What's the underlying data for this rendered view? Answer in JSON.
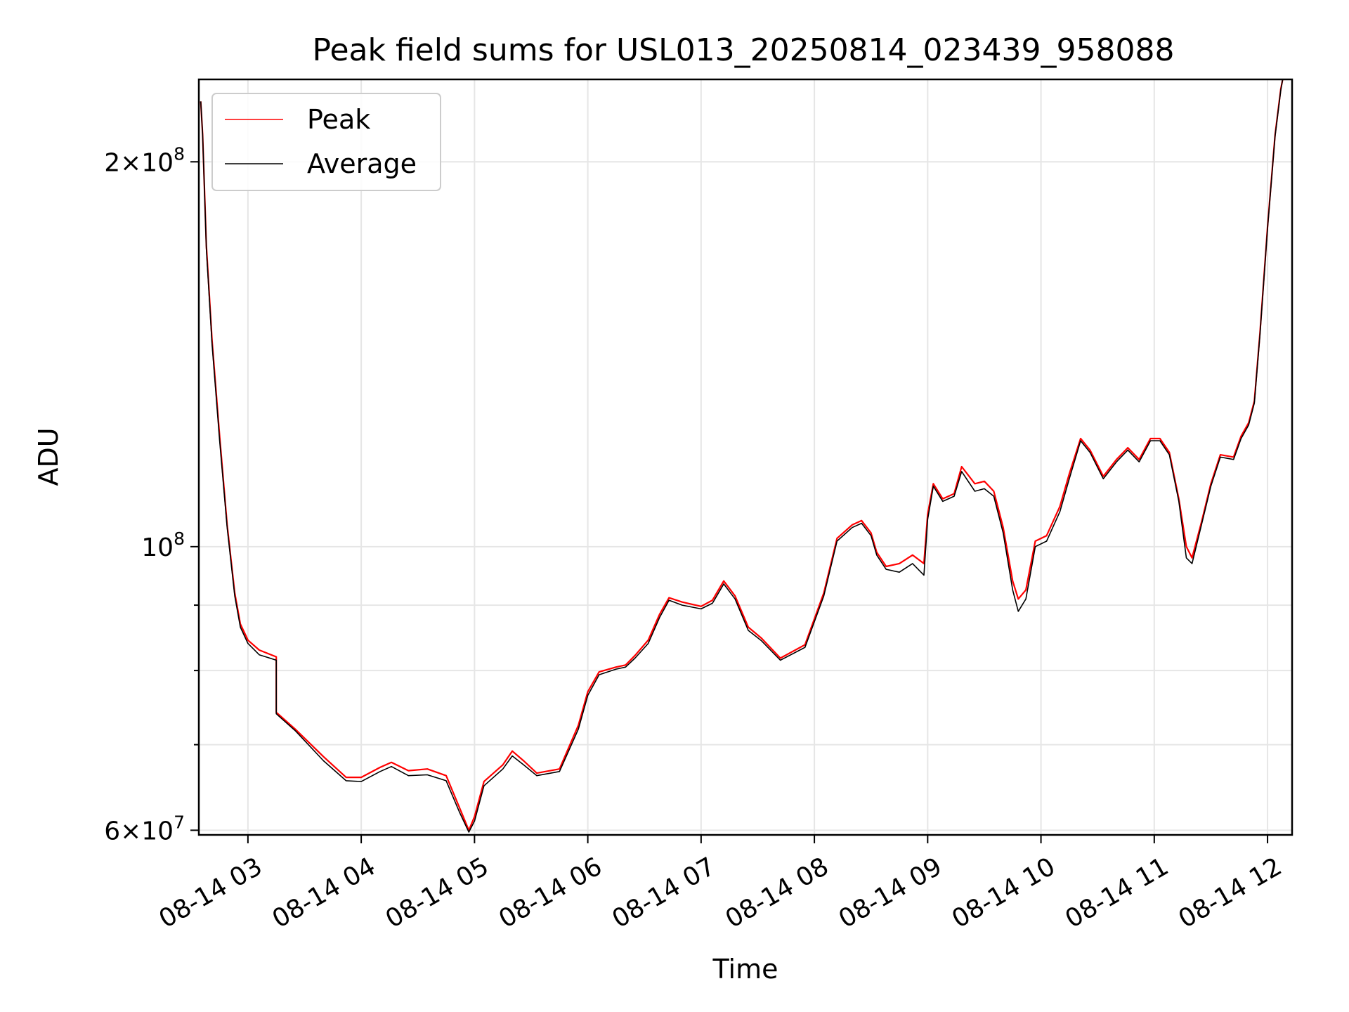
{
  "chart_data": {
    "type": "line",
    "title": "Peak field sums for USL013_20250814_023439_958088",
    "xlabel": "Time",
    "ylabel": "ADU",
    "y_scale": "log",
    "ylim": [
      59500000,
      232000000
    ],
    "xlim": [
      "2025-08-14 02:34",
      "2025-08-14 12:13"
    ],
    "grid": true,
    "legend_position": "upper-left",
    "x_ticks": [
      {
        "t": "2025-08-14 03:00",
        "label": "08-14 03"
      },
      {
        "t": "2025-08-14 04:00",
        "label": "08-14 04"
      },
      {
        "t": "2025-08-14 05:00",
        "label": "08-14 05"
      },
      {
        "t": "2025-08-14 06:00",
        "label": "08-14 06"
      },
      {
        "t": "2025-08-14 07:00",
        "label": "08-14 07"
      },
      {
        "t": "2025-08-14 08:00",
        "label": "08-14 08"
      },
      {
        "t": "2025-08-14 09:00",
        "label": "08-14 09"
      },
      {
        "t": "2025-08-14 10:00",
        "label": "08-14 10"
      },
      {
        "t": "2025-08-14 11:00",
        "label": "08-14 11"
      },
      {
        "t": "2025-08-14 12:00",
        "label": "08-14 12"
      }
    ],
    "y_ticks_major": [
      {
        "value": 200000000,
        "mant": "2",
        "exp": "8"
      },
      {
        "value": 100000000,
        "mant": "",
        "exp": "8"
      },
      {
        "value": 60000000,
        "mant": "6",
        "exp": "7"
      }
    ],
    "y_ticks_minor": [
      70000000,
      80000000,
      90000000
    ],
    "series": [
      {
        "name": "Peak",
        "color": "#ff0000",
        "points": [
          [
            "2025-08-14 02:35",
            223000000
          ],
          [
            "2025-08-14 02:36",
            210000000
          ],
          [
            "2025-08-14 02:38",
            172000000
          ],
          [
            "2025-08-14 02:41",
            145000000
          ],
          [
            "2025-08-14 02:45",
            122000000
          ],
          [
            "2025-08-14 02:49",
            104000000
          ],
          [
            "2025-08-14 02:53",
            92000000
          ],
          [
            "2025-08-14 02:56",
            87000000
          ],
          [
            "2025-08-14 03:00",
            84500000
          ],
          [
            "2025-08-14 03:06",
            83000000
          ],
          [
            "2025-08-14 03:15",
            82000000
          ],
          [
            "2025-08-14 03:15",
            74200000
          ],
          [
            "2025-08-14 03:25",
            72000000
          ],
          [
            "2025-08-14 03:40",
            68500000
          ],
          [
            "2025-08-14 03:52",
            66000000
          ],
          [
            "2025-08-14 04:00",
            66000000
          ],
          [
            "2025-08-14 04:10",
            67200000
          ],
          [
            "2025-08-14 04:16",
            67800000
          ],
          [
            "2025-08-14 04:25",
            66800000
          ],
          [
            "2025-08-14 04:35",
            67000000
          ],
          [
            "2025-08-14 04:45",
            66200000
          ],
          [
            "2025-08-14 04:52",
            62500000
          ],
          [
            "2025-08-14 04:57",
            60000000
          ],
          [
            "2025-08-14 05:00",
            61500000
          ],
          [
            "2025-08-14 05:05",
            65500000
          ],
          [
            "2025-08-14 05:15",
            67500000
          ],
          [
            "2025-08-14 05:20",
            69200000
          ],
          [
            "2025-08-14 05:26",
            68000000
          ],
          [
            "2025-08-14 05:33",
            66500000
          ],
          [
            "2025-08-14 05:45",
            67000000
          ],
          [
            "2025-08-14 05:55",
            72500000
          ],
          [
            "2025-08-14 06:00",
            77000000
          ],
          [
            "2025-08-14 06:06",
            79800000
          ],
          [
            "2025-08-14 06:15",
            80500000
          ],
          [
            "2025-08-14 06:20",
            80800000
          ],
          [
            "2025-08-14 06:25",
            82200000
          ],
          [
            "2025-08-14 06:32",
            84500000
          ],
          [
            "2025-08-14 06:38",
            88500000
          ],
          [
            "2025-08-14 06:43",
            91200000
          ],
          [
            "2025-08-14 06:50",
            90500000
          ],
          [
            "2025-08-14 07:00",
            89800000
          ],
          [
            "2025-08-14 07:06",
            90800000
          ],
          [
            "2025-08-14 07:12",
            94000000
          ],
          [
            "2025-08-14 07:18",
            91500000
          ],
          [
            "2025-08-14 07:25",
            86500000
          ],
          [
            "2025-08-14 07:32",
            84800000
          ],
          [
            "2025-08-14 07:42",
            81800000
          ],
          [
            "2025-08-14 07:55",
            83800000
          ],
          [
            "2025-08-14 08:05",
            92000000
          ],
          [
            "2025-08-14 08:12",
            101500000
          ],
          [
            "2025-08-14 08:20",
            104000000
          ],
          [
            "2025-08-14 08:25",
            104800000
          ],
          [
            "2025-08-14 08:30",
            102500000
          ],
          [
            "2025-08-14 08:33",
            99000000
          ],
          [
            "2025-08-14 08:38",
            96500000
          ],
          [
            "2025-08-14 08:45",
            97000000
          ],
          [
            "2025-08-14 08:52",
            98500000
          ],
          [
            "2025-08-14 08:58",
            97000000
          ],
          [
            "2025-08-14 09:00",
            106000000
          ],
          [
            "2025-08-14 09:03",
            112000000
          ],
          [
            "2025-08-14 09:08",
            109000000
          ],
          [
            "2025-08-14 09:14",
            110000000
          ],
          [
            "2025-08-14 09:18",
            115500000
          ],
          [
            "2025-08-14 09:25",
            112000000
          ],
          [
            "2025-08-14 09:30",
            112500000
          ],
          [
            "2025-08-14 09:35",
            110500000
          ],
          [
            "2025-08-14 09:40",
            103500000
          ],
          [
            "2025-08-14 09:45",
            94000000
          ],
          [
            "2025-08-14 09:48",
            91000000
          ],
          [
            "2025-08-14 09:52",
            92500000
          ],
          [
            "2025-08-14 09:57",
            101000000
          ],
          [
            "2025-08-14 10:03",
            102000000
          ],
          [
            "2025-08-14 10:10",
            107500000
          ],
          [
            "2025-08-14 10:15",
            114000000
          ],
          [
            "2025-08-14 10:21",
            121500000
          ],
          [
            "2025-08-14 10:26",
            119000000
          ],
          [
            "2025-08-14 10:33",
            113500000
          ],
          [
            "2025-08-14 10:40",
            117000000
          ],
          [
            "2025-08-14 10:46",
            119500000
          ],
          [
            "2025-08-14 10:52",
            117000000
          ],
          [
            "2025-08-14 10:58",
            121500000
          ],
          [
            "2025-08-14 11:03",
            121500000
          ],
          [
            "2025-08-14 11:08",
            118500000
          ],
          [
            "2025-08-14 11:13",
            109000000
          ],
          [
            "2025-08-14 11:17",
            100000000
          ],
          [
            "2025-08-14 11:20",
            98000000
          ],
          [
            "2025-08-14 11:25",
            104500000
          ],
          [
            "2025-08-14 11:30",
            112000000
          ],
          [
            "2025-08-14 11:35",
            118000000
          ],
          [
            "2025-08-14 11:42",
            117500000
          ],
          [
            "2025-08-14 11:46",
            122000000
          ],
          [
            "2025-08-14 11:50",
            125000000
          ],
          [
            "2025-08-14 11:53",
            130000000
          ],
          [
            "2025-08-14 11:56",
            147000000
          ],
          [
            "2025-08-14 12:00",
            178000000
          ],
          [
            "2025-08-14 12:04",
            210000000
          ],
          [
            "2025-08-14 12:07",
            228000000
          ],
          [
            "2025-08-14 12:08",
            232000000
          ]
        ]
      },
      {
        "name": "Average",
        "color": "#000000",
        "points": [
          [
            "2025-08-14 02:35",
            223000000
          ],
          [
            "2025-08-14 02:36",
            210000000
          ],
          [
            "2025-08-14 02:38",
            171000000
          ],
          [
            "2025-08-14 02:41",
            144000000
          ],
          [
            "2025-08-14 02:45",
            121000000
          ],
          [
            "2025-08-14 02:49",
            103500000
          ],
          [
            "2025-08-14 02:53",
            91500000
          ],
          [
            "2025-08-14 02:56",
            86500000
          ],
          [
            "2025-08-14 03:00",
            84000000
          ],
          [
            "2025-08-14 03:06",
            82300000
          ],
          [
            "2025-08-14 03:15",
            81500000
          ],
          [
            "2025-08-14 03:15",
            74000000
          ],
          [
            "2025-08-14 03:25",
            71800000
          ],
          [
            "2025-08-14 03:40",
            68000000
          ],
          [
            "2025-08-14 03:52",
            65600000
          ],
          [
            "2025-08-14 04:00",
            65500000
          ],
          [
            "2025-08-14 04:10",
            66700000
          ],
          [
            "2025-08-14 04:16",
            67300000
          ],
          [
            "2025-08-14 04:25",
            66200000
          ],
          [
            "2025-08-14 04:35",
            66300000
          ],
          [
            "2025-08-14 04:45",
            65600000
          ],
          [
            "2025-08-14 04:52",
            62000000
          ],
          [
            "2025-08-14 04:57",
            59800000
          ],
          [
            "2025-08-14 05:00",
            61000000
          ],
          [
            "2025-08-14 05:05",
            65000000
          ],
          [
            "2025-08-14 05:15",
            67000000
          ],
          [
            "2025-08-14 05:20",
            68600000
          ],
          [
            "2025-08-14 05:26",
            67500000
          ],
          [
            "2025-08-14 05:33",
            66200000
          ],
          [
            "2025-08-14 05:45",
            66700000
          ],
          [
            "2025-08-14 05:55",
            72000000
          ],
          [
            "2025-08-14 06:00",
            76500000
          ],
          [
            "2025-08-14 06:06",
            79400000
          ],
          [
            "2025-08-14 06:15",
            80200000
          ],
          [
            "2025-08-14 06:20",
            80500000
          ],
          [
            "2025-08-14 06:25",
            81800000
          ],
          [
            "2025-08-14 06:32",
            84000000
          ],
          [
            "2025-08-14 06:38",
            88000000
          ],
          [
            "2025-08-14 06:43",
            90800000
          ],
          [
            "2025-08-14 06:50",
            90000000
          ],
          [
            "2025-08-14 07:00",
            89400000
          ],
          [
            "2025-08-14 07:06",
            90300000
          ],
          [
            "2025-08-14 07:12",
            93500000
          ],
          [
            "2025-08-14 07:18",
            91000000
          ],
          [
            "2025-08-14 07:25",
            86000000
          ],
          [
            "2025-08-14 07:32",
            84400000
          ],
          [
            "2025-08-14 07:42",
            81500000
          ],
          [
            "2025-08-14 07:55",
            83400000
          ],
          [
            "2025-08-14 08:05",
            91500000
          ],
          [
            "2025-08-14 08:12",
            101000000
          ],
          [
            "2025-08-14 08:20",
            103500000
          ],
          [
            "2025-08-14 08:25",
            104300000
          ],
          [
            "2025-08-14 08:30",
            102000000
          ],
          [
            "2025-08-14 08:33",
            98500000
          ],
          [
            "2025-08-14 08:38",
            96000000
          ],
          [
            "2025-08-14 08:45",
            95500000
          ],
          [
            "2025-08-14 08:52",
            97000000
          ],
          [
            "2025-08-14 08:58",
            95000000
          ],
          [
            "2025-08-14 09:00",
            105000000
          ],
          [
            "2025-08-14 09:03",
            111500000
          ],
          [
            "2025-08-14 09:08",
            108500000
          ],
          [
            "2025-08-14 09:14",
            109500000
          ],
          [
            "2025-08-14 09:18",
            114500000
          ],
          [
            "2025-08-14 09:25",
            110500000
          ],
          [
            "2025-08-14 09:30",
            111000000
          ],
          [
            "2025-08-14 09:35",
            109500000
          ],
          [
            "2025-08-14 09:40",
            102500000
          ],
          [
            "2025-08-14 09:45",
            92500000
          ],
          [
            "2025-08-14 09:48",
            89000000
          ],
          [
            "2025-08-14 09:52",
            91000000
          ],
          [
            "2025-08-14 09:57",
            100000000
          ],
          [
            "2025-08-14 10:03",
            101000000
          ],
          [
            "2025-08-14 10:10",
            106500000
          ],
          [
            "2025-08-14 10:15",
            113000000
          ],
          [
            "2025-08-14 10:21",
            121000000
          ],
          [
            "2025-08-14 10:26",
            118500000
          ],
          [
            "2025-08-14 10:33",
            113000000
          ],
          [
            "2025-08-14 10:40",
            116500000
          ],
          [
            "2025-08-14 10:46",
            119000000
          ],
          [
            "2025-08-14 10:52",
            116500000
          ],
          [
            "2025-08-14 10:58",
            121000000
          ],
          [
            "2025-08-14 11:03",
            121000000
          ],
          [
            "2025-08-14 11:08",
            118000000
          ],
          [
            "2025-08-14 11:13",
            108500000
          ],
          [
            "2025-08-14 11:17",
            98000000
          ],
          [
            "2025-08-14 11:20",
            97000000
          ],
          [
            "2025-08-14 11:25",
            104000000
          ],
          [
            "2025-08-14 11:30",
            111500000
          ],
          [
            "2025-08-14 11:35",
            117500000
          ],
          [
            "2025-08-14 11:42",
            117000000
          ],
          [
            "2025-08-14 11:46",
            121500000
          ],
          [
            "2025-08-14 11:50",
            124500000
          ],
          [
            "2025-08-14 11:53",
            129500000
          ],
          [
            "2025-08-14 11:56",
            146500000
          ],
          [
            "2025-08-14 12:00",
            177500000
          ],
          [
            "2025-08-14 12:04",
            209500000
          ],
          [
            "2025-08-14 12:07",
            227500000
          ],
          [
            "2025-08-14 12:08",
            232000000
          ]
        ]
      }
    ]
  }
}
